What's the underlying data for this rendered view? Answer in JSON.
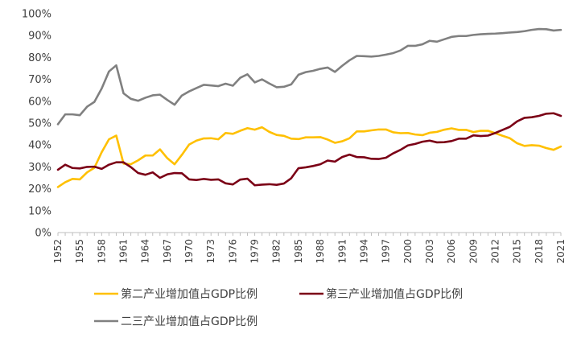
{
  "chart_data": {
    "type": "line",
    "title": "",
    "xlabel": "",
    "ylabel": "",
    "ylim": [
      0,
      100
    ],
    "xlim": [
      1952,
      2021
    ],
    "y_ticks": [
      "0%",
      "10%",
      "20%",
      "30%",
      "40%",
      "50%",
      "60%",
      "70%",
      "80%",
      "90%",
      "100%"
    ],
    "x_tick_labels": [
      "1952",
      "1955",
      "1958",
      "1961",
      "1964",
      "1967",
      "1970",
      "1973",
      "1976",
      "1979",
      "1982",
      "1985",
      "1988",
      "1991",
      "1994",
      "1997",
      "2000",
      "2003",
      "2006",
      "2009",
      "2012",
      "2015",
      "2018",
      "2021"
    ],
    "grid": false,
    "legend_position": "bottom",
    "x": [
      1952,
      1953,
      1954,
      1955,
      1956,
      1957,
      1958,
      1959,
      1960,
      1961,
      1962,
      1963,
      1964,
      1965,
      1966,
      1967,
      1968,
      1969,
      1970,
      1971,
      1972,
      1973,
      1974,
      1975,
      1976,
      1977,
      1978,
      1979,
      1980,
      1981,
      1982,
      1983,
      1984,
      1985,
      1986,
      1987,
      1988,
      1989,
      1990,
      1991,
      1992,
      1993,
      1994,
      1995,
      1996,
      1997,
      1998,
      1999,
      2000,
      2001,
      2002,
      2003,
      2004,
      2005,
      2006,
      2007,
      2008,
      2009,
      2010,
      2011,
      2012,
      2013,
      2014,
      2015,
      2016,
      2017,
      2018,
      2019,
      2020,
      2021
    ],
    "series": [
      {
        "name": "第二产业增加值占GDP比例",
        "color": "#FFC000",
        "values": [
          20.8,
          23.0,
          24.5,
          24.3,
          27.5,
          29.6,
          36.7,
          42.6,
          44.3,
          31.5,
          31.2,
          33.0,
          35.2,
          35.2,
          38.0,
          34.0,
          31.2,
          35.5,
          40.2,
          42.0,
          43.0,
          43.1,
          42.6,
          45.5,
          45.1,
          46.5,
          47.7,
          47.0,
          48.1,
          46.0,
          44.6,
          44.2,
          42.9,
          42.7,
          43.5,
          43.5,
          43.6,
          42.5,
          41.0,
          41.7,
          43.1,
          46.2,
          46.2,
          46.7,
          47.1,
          47.1,
          45.8,
          45.4,
          45.5,
          44.8,
          44.5,
          45.6,
          46.0,
          47.0,
          47.6,
          46.9,
          46.9,
          45.9,
          46.5,
          46.5,
          45.4,
          44.2,
          43.1,
          40.8,
          39.6,
          39.9,
          39.7,
          38.6,
          37.8,
          39.3
        ]
      },
      {
        "name": "第三产业增加值占GDP比例",
        "color": "#7B0016",
        "values": [
          28.7,
          31.0,
          29.5,
          29.3,
          30.0,
          30.1,
          29.1,
          31.0,
          32.1,
          32.1,
          29.9,
          27.2,
          26.4,
          27.5,
          25.0,
          26.6,
          27.2,
          27.1,
          24.3,
          24.0,
          24.5,
          24.1,
          24.3,
          22.5,
          22.0,
          24.2,
          24.6,
          21.6,
          21.9,
          22.1,
          21.8,
          22.4,
          24.8,
          29.4,
          29.8,
          30.4,
          31.2,
          32.9,
          32.4,
          34.5,
          35.6,
          34.5,
          34.4,
          33.7,
          33.6,
          34.2,
          36.2,
          37.8,
          39.8,
          40.5,
          41.5,
          42.0,
          41.2,
          41.3,
          41.8,
          42.9,
          42.9,
          44.4,
          44.1,
          44.3,
          45.5,
          46.9,
          48.3,
          50.8,
          52.4,
          52.7,
          53.3,
          54.3,
          54.5,
          53.3
        ]
      },
      {
        "name": "二三产业增加值占GDP比例",
        "color": "#808080",
        "values": [
          49.5,
          54.0,
          54.0,
          53.6,
          57.5,
          59.7,
          65.8,
          73.6,
          76.4,
          63.6,
          61.1,
          60.2,
          61.6,
          62.7,
          63.0,
          60.6,
          58.4,
          62.6,
          64.5,
          66.0,
          67.5,
          67.2,
          66.9,
          68.0,
          67.1,
          70.7,
          72.3,
          68.6,
          70.0,
          68.1,
          66.4,
          66.6,
          67.7,
          72.1,
          73.3,
          73.9,
          74.8,
          75.4,
          73.4,
          76.2,
          78.7,
          80.7,
          80.6,
          80.4,
          80.7,
          81.3,
          82.0,
          83.2,
          85.3,
          85.3,
          86.0,
          87.6,
          87.2,
          88.3,
          89.4,
          89.8,
          89.8,
          90.3,
          90.6,
          90.8,
          90.9,
          91.1,
          91.4,
          91.6,
          92.0,
          92.6,
          93.0,
          92.9,
          92.3,
          92.6
        ]
      }
    ]
  }
}
